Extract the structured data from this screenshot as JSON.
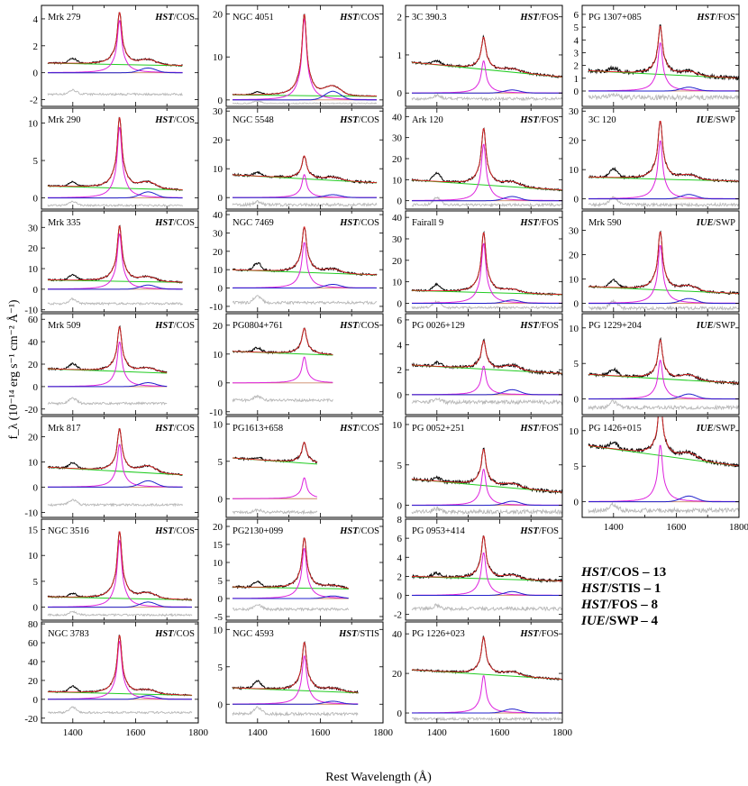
{
  "figure": {
    "x_label": "Rest Wavelength (Å)",
    "y_label": "f_λ (10⁻¹⁴ erg s⁻¹ cm⁻² Å⁻¹)",
    "x_range": [
      1300,
      1800
    ],
    "x_ticks": [
      1400,
      1600,
      1800
    ],
    "colors": {
      "observed": "#000000",
      "total_fit": "#dd2222",
      "continuum": "#22cc22",
      "broad_component": "#dd22dd",
      "blue_component": "#2222cc",
      "zero_line": "#cc8866",
      "residual": "#b8b8b8"
    }
  },
  "chart_data": {
    "type": "line",
    "title": "",
    "xlabel": "Rest Wavelength (Å)",
    "ylabel": "f_λ (10⁻¹⁴ erg s⁻¹ cm⁻² Å⁻¹)",
    "xlim": [
      1300,
      1800
    ],
    "panels": [
      {
        "name": "Mrk 279",
        "inst": "HST",
        "suffix": "/COS",
        "col": 0,
        "row": 0,
        "wmax": 1750,
        "ylim": [
          -2.5,
          5
        ],
        "yticks": [
          -2,
          0,
          2,
          4
        ],
        "cont": [
          0.72,
          0.5
        ],
        "peak": 3.9,
        "ciii": 0.35,
        "siiv": 0.35,
        "zoff": -1.6,
        "noise": 0.06
      },
      {
        "name": "Mrk 290",
        "inst": "HST",
        "suffix": "/COS",
        "col": 0,
        "row": 1,
        "wmax": 1750,
        "ylim": [
          -1.5,
          12
        ],
        "yticks": [
          0,
          5,
          10
        ],
        "cont": [
          1.6,
          1.0
        ],
        "peak": 9.5,
        "ciii": 0.8,
        "siiv": 0.6,
        "zoff": -1.0,
        "noise": 0.1
      },
      {
        "name": "Mrk 335",
        "inst": "HST",
        "suffix": "/COS",
        "col": 0,
        "row": 2,
        "wmax": 1750,
        "ylim": [
          -11,
          38
        ],
        "yticks": [
          -10,
          0,
          10,
          20,
          30
        ],
        "cont": [
          4.5,
          3.2
        ],
        "peak": 27,
        "ciii": 2.0,
        "siiv": 2.5,
        "zoff": -7,
        "noise": 0.4
      },
      {
        "name": "Mrk 509",
        "inst": "HST",
        "suffix": "/COS",
        "col": 0,
        "row": 3,
        "wmax": 1700,
        "ylim": [
          -25,
          65
        ],
        "yticks": [
          -20,
          0,
          20,
          40,
          60
        ],
        "cont": [
          16,
          11
        ],
        "peak": 40,
        "ciii": 3.5,
        "siiv": 5,
        "zoff": -15,
        "noise": 0.8
      },
      {
        "name": "Mrk 817",
        "inst": "HST",
        "suffix": "/COS",
        "col": 0,
        "row": 4,
        "wmax": 1750,
        "ylim": [
          -12,
          28
        ],
        "yticks": [
          -10,
          0,
          10,
          20
        ],
        "cont": [
          8,
          4.5
        ],
        "peak": 17,
        "ciii": 2.5,
        "siiv": 2.2,
        "zoff": -7,
        "noise": 0.35
      },
      {
        "name": "NGC 3516",
        "inst": "HST",
        "suffix": "/COS",
        "col": 0,
        "row": 5,
        "wmax": 1780,
        "ylim": [
          -2.5,
          17
        ],
        "yticks": [
          0,
          5,
          10,
          15
        ],
        "cont": [
          2.0,
          1.4
        ],
        "peak": 13,
        "ciii": 1.0,
        "siiv": 0.7,
        "zoff": -1.5,
        "noise": 0.15
      },
      {
        "name": "NGC 3783",
        "inst": "HST",
        "suffix": "/COS",
        "col": 0,
        "row": 6,
        "wmax": 1780,
        "ylim": [
          -25,
          82
        ],
        "yticks": [
          -20,
          0,
          20,
          40,
          60,
          80
        ],
        "cont": [
          8,
          4
        ],
        "peak": 62,
        "ciii": 4,
        "siiv": 6,
        "zoff": -14,
        "noise": 0.8
      },
      {
        "name": "NGC 4051",
        "inst": "HST",
        "suffix": "/COS",
        "col": 1,
        "row": 0,
        "wmax": 1780,
        "ylim": [
          -1.5,
          22
        ],
        "yticks": [
          0,
          10,
          20
        ],
        "cont": [
          1.2,
          0.8
        ],
        "peak": 19,
        "ciii": 2.0,
        "siiv": 0.6,
        "zoff": -0.8,
        "noise": 0.1
      },
      {
        "name": "NGC 5548",
        "inst": "HST",
        "suffix": "/COS",
        "col": 1,
        "row": 1,
        "wmax": 1780,
        "ylim": [
          -4,
          31
        ],
        "yticks": [
          0,
          10,
          20,
          30
        ],
        "cont": [
          8,
          5
        ],
        "peak": 8,
        "ciii": 1,
        "siiv": 1.2,
        "zoff": -2.5,
        "noise": 0.4
      },
      {
        "name": "NGC 7469",
        "inst": "HST",
        "suffix": "/COS",
        "col": 1,
        "row": 2,
        "wmax": 1780,
        "ylim": [
          -13,
          42
        ],
        "yticks": [
          -10,
          0,
          10,
          20,
          30,
          40
        ],
        "cont": [
          10,
          7
        ],
        "peak": 25,
        "ciii": 2,
        "siiv": 4,
        "zoff": -8,
        "noise": 0.6
      },
      {
        "name": "PG0804+761",
        "inst": "HST",
        "suffix": "/COS",
        "col": 1,
        "row": 3,
        "wmax": 1640,
        "ylim": [
          -11,
          24
        ],
        "yticks": [
          -10,
          0,
          10,
          20
        ],
        "cont": [
          11,
          9
        ],
        "peak": 9,
        "ciii": 0,
        "siiv": 1.5,
        "zoff": -6,
        "noise": 0.35
      },
      {
        "name": "PG1613+658",
        "inst": "HST",
        "suffix": "/COS",
        "col": 1,
        "row": 4,
        "wmax": 1590,
        "ylim": [
          -2.5,
          11
        ],
        "yticks": [
          0,
          5,
          10
        ],
        "cont": [
          5.5,
          4.0
        ],
        "peak": 2.8,
        "ciii": 0,
        "siiv": 0.3,
        "zoff": -1.8,
        "noise": 0.15
      },
      {
        "name": "PG2130+099",
        "inst": "HST",
        "suffix": "/COS",
        "col": 1,
        "row": 5,
        "wmax": 1690,
        "ylim": [
          -6,
          22
        ],
        "yticks": [
          -5,
          0,
          5,
          10,
          15,
          20
        ],
        "cont": [
          3.2,
          2.5
        ],
        "peak": 14,
        "ciii": 0.7,
        "siiv": 1.5,
        "zoff": -3,
        "noise": 0.3
      },
      {
        "name": "NGC 4593",
        "inst": "HST",
        "suffix": "/STIS",
        "col": 1,
        "row": 6,
        "wmax": 1720,
        "ylim": [
          -2.5,
          11
        ],
        "yticks": [
          0,
          5,
          10
        ],
        "cont": [
          2.2,
          1.4
        ],
        "peak": 6.5,
        "ciii": 0.4,
        "siiv": 1.0,
        "zoff": -1.3,
        "noise": 0.15
      },
      {
        "name": "3C 390.3",
        "inst": "HST",
        "suffix": "/FOS",
        "col": 2,
        "row": 0,
        "wmax": 1800,
        "ylim": [
          -0.35,
          2.3
        ],
        "yticks": [
          0,
          1,
          2
        ],
        "cont": [
          0.82,
          0.42
        ],
        "peak": 0.85,
        "ciii": 0.08,
        "siiv": 0.1,
        "zoff": -0.15,
        "noise": 0.03
      },
      {
        "name": "Ark 120",
        "inst": "HST",
        "suffix": "/FOS",
        "col": 2,
        "row": 1,
        "wmax": 1800,
        "ylim": [
          -4,
          44
        ],
        "yticks": [
          0,
          10,
          20,
          30,
          40
        ],
        "cont": [
          10,
          5
        ],
        "peak": 27,
        "ciii": 2,
        "siiv": 4,
        "zoff": -2,
        "noise": 0.5
      },
      {
        "name": "Fairall 9",
        "inst": "HST",
        "suffix": "/FOS",
        "col": 2,
        "row": 2,
        "wmax": 1800,
        "ylim": [
          -4,
          43
        ],
        "yticks": [
          0,
          10,
          20,
          30,
          40
        ],
        "cont": [
          6,
          4
        ],
        "peak": 28,
        "ciii": 1.5,
        "siiv": 3,
        "zoff": -2,
        "noise": 0.4
      },
      {
        "name": "PG 0026+129",
        "inst": "HST",
        "suffix": "/FOS",
        "col": 2,
        "row": 3,
        "wmax": 1800,
        "ylim": [
          -1.6,
          6.5
        ],
        "yticks": [
          0,
          2,
          4,
          6
        ],
        "cont": [
          2.4,
          1.7
        ],
        "peak": 2.3,
        "ciii": 0.4,
        "siiv": 0.3,
        "zoff": -0.6,
        "noise": 0.12
      },
      {
        "name": "PG 0052+251",
        "inst": "HST",
        "suffix": "/FOS",
        "col": 2,
        "row": 4,
        "wmax": 1800,
        "ylim": [
          -1.5,
          11
        ],
        "yticks": [
          0,
          5,
          10
        ],
        "cont": [
          3.3,
          1.6
        ],
        "peak": 4.5,
        "ciii": 0.5,
        "siiv": 0.4,
        "zoff": -0.8,
        "noise": 0.2
      },
      {
        "name": "PG 0953+414",
        "inst": "HST",
        "suffix": "/FOS",
        "col": 2,
        "row": 5,
        "wmax": 1800,
        "ylim": [
          -2.6,
          8
        ],
        "yticks": [
          -2,
          0,
          2,
          4,
          6,
          8
        ],
        "cont": [
          2.0,
          1.5
        ],
        "peak": 4.5,
        "ciii": 0.4,
        "siiv": 0.4,
        "zoff": -1.4,
        "noise": 0.15
      },
      {
        "name": "PG 1226+023",
        "inst": "HST",
        "suffix": "/FOS",
        "col": 2,
        "row": 6,
        "wmax": 1800,
        "ylim": [
          -5,
          46
        ],
        "yticks": [
          0,
          20,
          40
        ],
        "cont": [
          22,
          17
        ],
        "peak": 19,
        "ciii": 2,
        "siiv": 0,
        "zoff": -3,
        "noise": 0.5
      },
      {
        "name": "PG 1307+085",
        "inst": "HST",
        "suffix": "/FOS",
        "col": 3,
        "row": 0,
        "wmax": 1800,
        "ylim": [
          -1.2,
          6.7
        ],
        "yticks": [
          0,
          1,
          2,
          3,
          4,
          5,
          6
        ],
        "cont": [
          1.6,
          1.0
        ],
        "peak": 3.8,
        "ciii": 0.3,
        "siiv": 0.3,
        "zoff": -0.5,
        "noise": 0.15
      },
      {
        "name": "3C 120",
        "inst": "IUE",
        "suffix": "/SWP",
        "col": 3,
        "row": 1,
        "wmax": 1800,
        "ylim": [
          -3.5,
          31
        ],
        "yticks": [
          0,
          10,
          20,
          30
        ],
        "cont": [
          7.5,
          6
        ],
        "peak": 20,
        "ciii": 1.5,
        "siiv": 3,
        "zoff": -2,
        "noise": 0.4
      },
      {
        "name": "Mrk 590",
        "inst": "IUE",
        "suffix": "/SWP",
        "col": 3,
        "row": 2,
        "wmax": 1800,
        "ylim": [
          -3.5,
          38
        ],
        "yticks": [
          0,
          10,
          20,
          30
        ],
        "cont": [
          7,
          4
        ],
        "peak": 24,
        "ciii": 2,
        "siiv": 3,
        "zoff": -2,
        "noise": 0.5
      },
      {
        "name": "PG 1229+204",
        "inst": "IUE",
        "suffix": "/SWP",
        "col": 3,
        "row": 3,
        "wmax": 1800,
        "ylim": [
          -2.2,
          12
        ],
        "yticks": [
          0,
          5,
          10
        ],
        "cont": [
          3.5,
          2.2
        ],
        "peak": 5.5,
        "ciii": 0.7,
        "siiv": 0.9,
        "zoff": -1.2,
        "noise": 0.2
      },
      {
        "name": "PG 1426+015",
        "inst": "IUE",
        "suffix": "/SWP",
        "col": 3,
        "row": 4,
        "wmax": 1800,
        "ylim": [
          -2.2,
          12
        ],
        "yticks": [
          0,
          5,
          10
        ],
        "cont": [
          8,
          5
        ],
        "peak": 8,
        "ciii": 0.8,
        "siiv": 0.9,
        "zoff": -1.2,
        "noise": 0.25
      }
    ],
    "summary": [
      {
        "inst": "HST",
        "label": "/COS – 13"
      },
      {
        "inst": "HST",
        "label": "/STIS – 1"
      },
      {
        "inst": "HST",
        "label": "/FOS – 8"
      },
      {
        "inst": "IUE",
        "label": "/SWP – 4"
      }
    ]
  }
}
